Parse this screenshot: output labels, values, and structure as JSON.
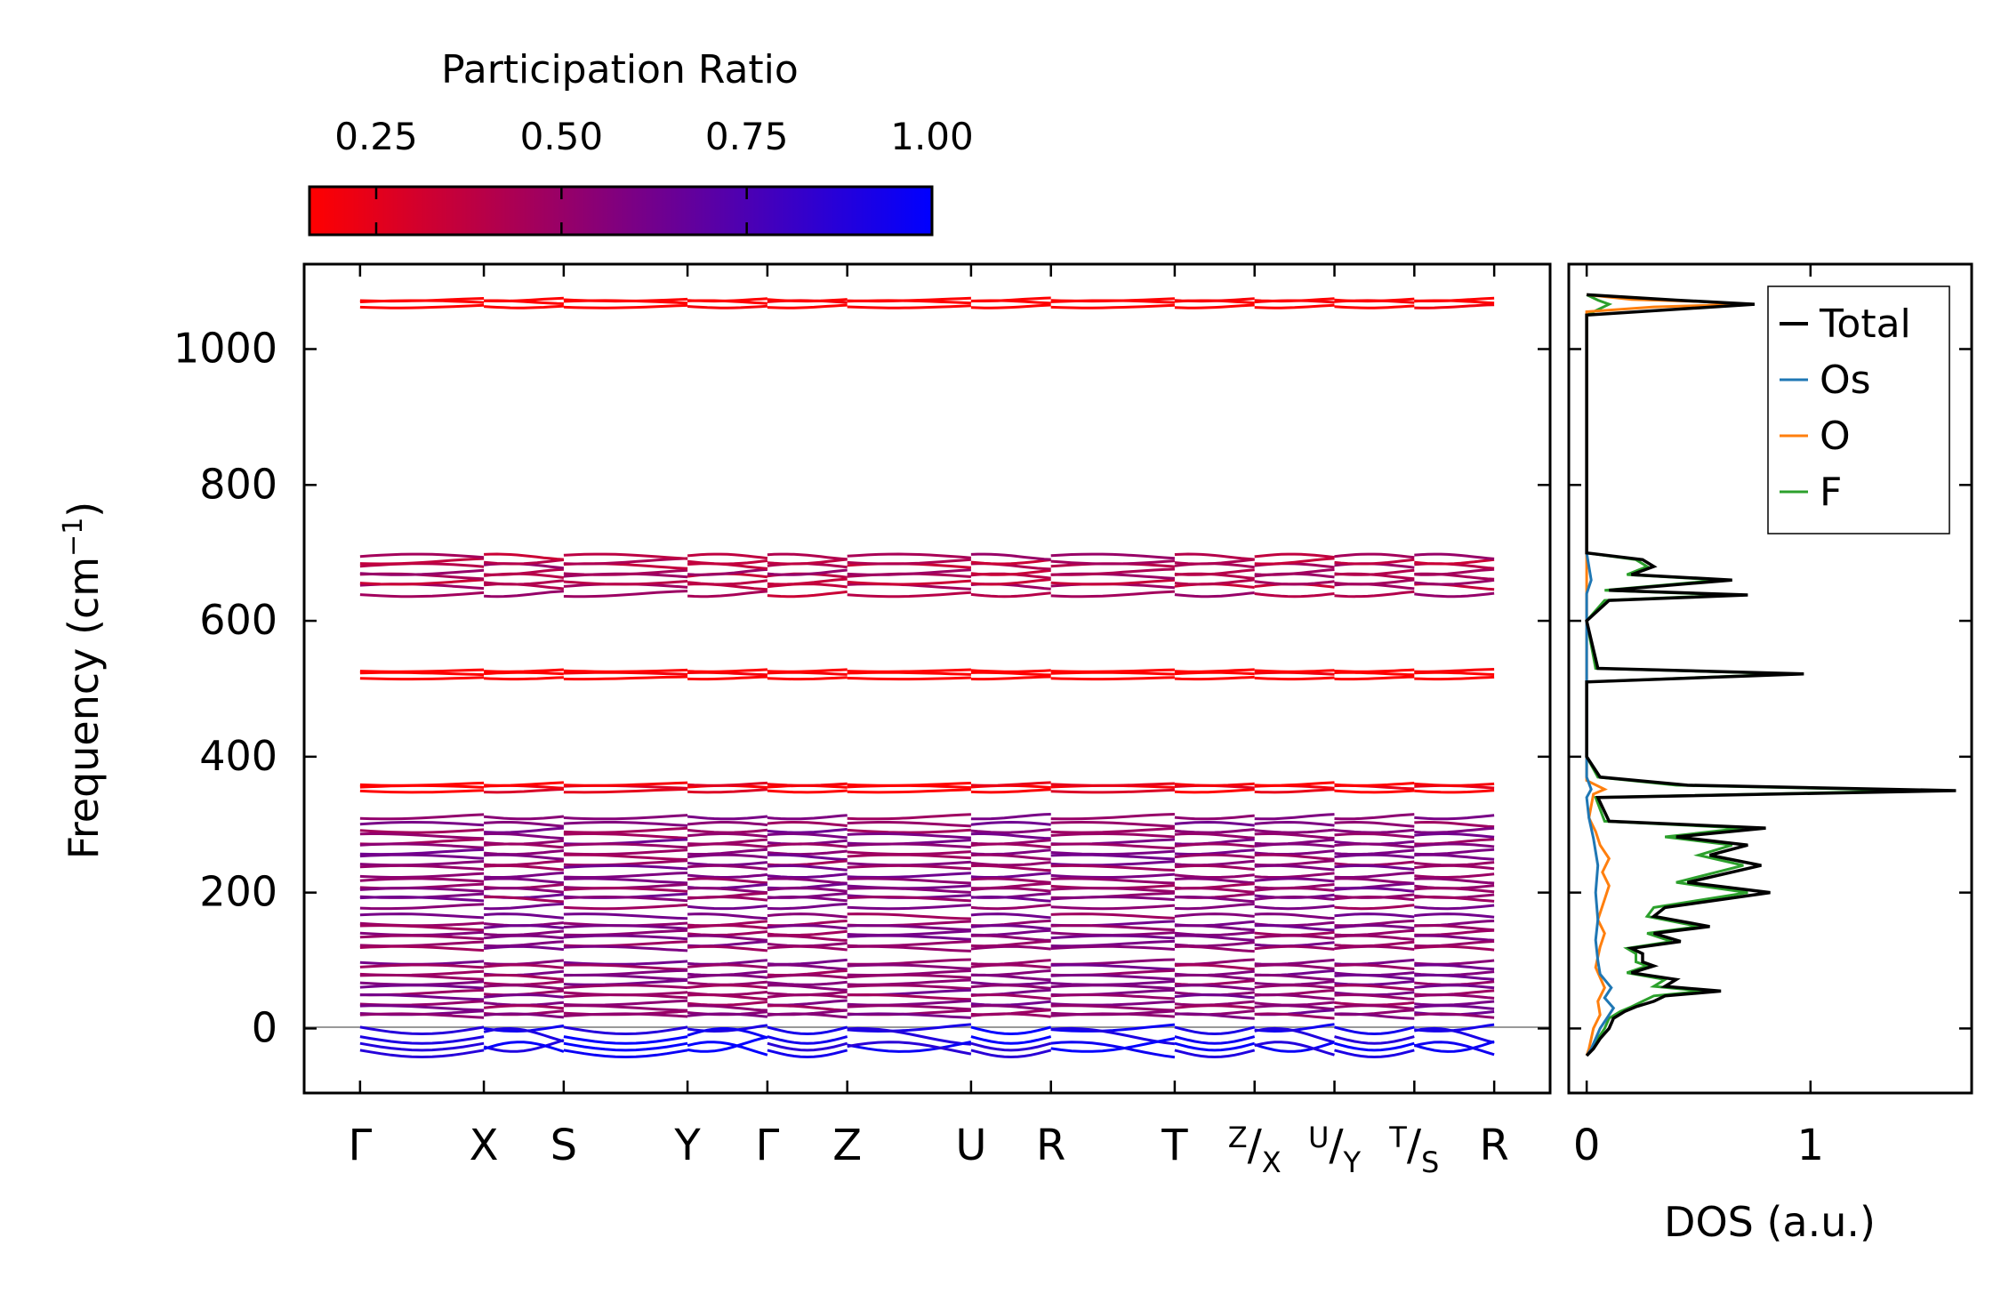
{
  "chart_data": [
    {
      "type": "line",
      "name": "phonon-band-structure",
      "ylabel": "Frequency (cm",
      "ylabel_sup": "−1",
      "ylabel_tail": ")",
      "ylim": [
        -95,
        1125
      ],
      "yticks": [
        0,
        200,
        400,
        600,
        800,
        1000
      ],
      "xticks": [
        {
          "pos": 0,
          "base": "Γ"
        },
        {
          "pos": 1.55,
          "base": "X"
        },
        {
          "pos": 2.55,
          "base": "S"
        },
        {
          "pos": 4.1,
          "base": "Y"
        },
        {
          "pos": 5.1,
          "base": "Γ"
        },
        {
          "pos": 6.1,
          "base": "Z"
        },
        {
          "pos": 7.65,
          "base": "U"
        },
        {
          "pos": 8.65,
          "base": "R"
        },
        {
          "pos": 10.2,
          "base": "T"
        },
        {
          "pos": 11.2,
          "sup": "Z",
          "slash": "/",
          "sub": "X"
        },
        {
          "pos": 12.2,
          "sup": "U",
          "slash": "/",
          "sub": "Y"
        },
        {
          "pos": 13.2,
          "sup": "T",
          "slash": "/",
          "sub": "S"
        },
        {
          "pos": 14.2,
          "base": "R"
        }
      ],
      "xlim": [
        -0.7,
        14.9
      ],
      "band_groups": [
        {
          "freqs": [
            1063,
            1069,
            1073
          ],
          "pr": 0.12
        },
        {
          "freqs": [
            640,
            650,
            658,
            665,
            672,
            680,
            688,
            694
          ],
          "pr": 0.42
        },
        {
          "freqs": [
            516,
            522,
            527
          ],
          "pr": 0.12
        },
        {
          "freqs": [
            350,
            355,
            360
          ],
          "pr": 0.2
        },
        {
          "freqs": [
            312,
            300,
            292,
            283,
            275,
            268,
            260,
            252,
            244,
            236,
            226,
            217,
            210,
            203,
            196,
            190,
            180,
            165,
            155,
            148,
            141,
            133,
            125,
            117,
            98,
            90,
            82,
            75,
            68,
            60,
            53,
            46,
            38,
            30,
            24,
            18
          ],
          "pr": 0.55
        },
        {
          "freqs": [
            2,
            -12,
            -22,
            -32
          ],
          "pr": 0.95
        }
      ]
    },
    {
      "type": "line",
      "name": "density-of-states",
      "xlabel": "DOS (a.u.)",
      "xlim": [
        -0.08,
        1.72
      ],
      "ylim": [
        -95,
        1125
      ],
      "xticks": [
        0,
        1
      ],
      "legend_position": "top-right",
      "series": [
        {
          "name": "Total",
          "color": "#000000",
          "points": [
            [
              0,
              -40
            ],
            [
              0.03,
              -30
            ],
            [
              0.06,
              -15
            ],
            [
              0.1,
              0
            ],
            [
              0.12,
              15
            ],
            [
              0.17,
              25
            ],
            [
              0.22,
              32
            ],
            [
              0.3,
              40
            ],
            [
              0.35,
              48
            ],
            [
              0.6,
              55
            ],
            [
              0.35,
              62
            ],
            [
              0.4,
              72
            ],
            [
              0.2,
              82
            ],
            [
              0.3,
              92
            ],
            [
              0.25,
              98
            ],
            [
              0.25,
              110
            ],
            [
              0.2,
              118
            ],
            [
              0.42,
              128
            ],
            [
              0.3,
              140
            ],
            [
              0.55,
              150
            ],
            [
              0.3,
              165
            ],
            [
              0.35,
              178
            ],
            [
              0.82,
              200
            ],
            [
              0.45,
              215
            ],
            [
              0.78,
              240
            ],
            [
              0.55,
              255
            ],
            [
              0.72,
              270
            ],
            [
              0.4,
              282
            ],
            [
              0.8,
              295
            ],
            [
              0.1,
              305
            ],
            [
              0.05,
              340
            ],
            [
              1.65,
              350
            ],
            [
              0.45,
              358
            ],
            [
              0.06,
              370
            ],
            [
              0,
              400
            ],
            [
              0,
              510
            ],
            [
              0.97,
              522
            ],
            [
              0.05,
              530
            ],
            [
              0,
              600
            ],
            [
              0.1,
              630
            ],
            [
              0.72,
              638
            ],
            [
              0.1,
              645
            ],
            [
              0.65,
              660
            ],
            [
              0.2,
              668
            ],
            [
              0.3,
              680
            ],
            [
              0.25,
              690
            ],
            [
              0,
              700
            ],
            [
              0,
              1050
            ],
            [
              0.75,
              1066
            ],
            [
              0.4,
              1072
            ],
            [
              0,
              1080
            ]
          ]
        },
        {
          "name": "Os",
          "color": "#1f77b4",
          "points": [
            [
              0,
              -40
            ],
            [
              0.02,
              -30
            ],
            [
              0.04,
              -15
            ],
            [
              0.06,
              0
            ],
            [
              0.09,
              15
            ],
            [
              0.12,
              30
            ],
            [
              0.08,
              45
            ],
            [
              0.11,
              60
            ],
            [
              0.06,
              80
            ],
            [
              0.05,
              100
            ],
            [
              0.04,
              130
            ],
            [
              0.05,
              160
            ],
            [
              0.04,
              200
            ],
            [
              0.05,
              240
            ],
            [
              0.03,
              280
            ],
            [
              0.01,
              310
            ],
            [
              0,
              340
            ],
            [
              0.02,
              352
            ],
            [
              0,
              370
            ],
            [
              0,
              640
            ],
            [
              0.02,
              660
            ],
            [
              0,
              700
            ]
          ]
        },
        {
          "name": "O",
          "color": "#ff7f0e",
          "points": [
            [
              0,
              -40
            ],
            [
              0.01,
              -30
            ],
            [
              0.02,
              -15
            ],
            [
              0.03,
              0
            ],
            [
              0.06,
              20
            ],
            [
              0.05,
              40
            ],
            [
              0.08,
              60
            ],
            [
              0.04,
              90
            ],
            [
              0.06,
              120
            ],
            [
              0.08,
              140
            ],
            [
              0.05,
              160
            ],
            [
              0.08,
              190
            ],
            [
              0.1,
              210
            ],
            [
              0.07,
              230
            ],
            [
              0.1,
              250
            ],
            [
              0.06,
              270
            ],
            [
              0.04,
              290
            ],
            [
              0.01,
              310
            ],
            [
              0.03,
              345
            ],
            [
              0.08,
              352
            ],
            [
              0,
              365
            ],
            [
              0,
              1055
            ],
            [
              0.3,
              1062
            ],
            [
              0.72,
              1066
            ],
            [
              0.5,
              1070
            ],
            [
              0.2,
              1073
            ],
            [
              0,
              1080
            ]
          ]
        },
        {
          "name": "F",
          "color": "#2ca02c",
          "points": [
            [
              0,
              -40
            ],
            [
              0.02,
              -30
            ],
            [
              0.05,
              -15
            ],
            [
              0.08,
              0
            ],
            [
              0.1,
              15
            ],
            [
              0.15,
              25
            ],
            [
              0.2,
              32
            ],
            [
              0.25,
              40
            ],
            [
              0.3,
              48
            ],
            [
              0.52,
              55
            ],
            [
              0.3,
              62
            ],
            [
              0.35,
              72
            ],
            [
              0.18,
              82
            ],
            [
              0.27,
              92
            ],
            [
              0.22,
              98
            ],
            [
              0.22,
              110
            ],
            [
              0.18,
              118
            ],
            [
              0.38,
              128
            ],
            [
              0.27,
              140
            ],
            [
              0.5,
              150
            ],
            [
              0.27,
              165
            ],
            [
              0.3,
              178
            ],
            [
              0.72,
              200
            ],
            [
              0.4,
              215
            ],
            [
              0.7,
              240
            ],
            [
              0.5,
              255
            ],
            [
              0.65,
              270
            ],
            [
              0.35,
              282
            ],
            [
              0.7,
              295
            ],
            [
              0.08,
              305
            ],
            [
              0.04,
              340
            ],
            [
              1.5,
              350
            ],
            [
              0.4,
              358
            ],
            [
              0.05,
              370
            ],
            [
              0,
              400
            ],
            [
              0,
              510
            ],
            [
              0.92,
              522
            ],
            [
              0.04,
              530
            ],
            [
              0,
              600
            ],
            [
              0.08,
              630
            ],
            [
              0.65,
              638
            ],
            [
              0.08,
              645
            ],
            [
              0.6,
              660
            ],
            [
              0.18,
              668
            ],
            [
              0.27,
              680
            ],
            [
              0.22,
              690
            ],
            [
              0,
              700
            ],
            [
              0,
              1050
            ],
            [
              0.1,
              1066
            ],
            [
              0.05,
              1072
            ],
            [
              0,
              1080
            ]
          ]
        }
      ]
    },
    {
      "type": "heatmap",
      "name": "colorbar",
      "title": "Participation Ratio",
      "range": [
        0.16,
        1.0
      ],
      "tick_values": [
        0.25,
        0.5,
        0.75,
        1.0
      ],
      "tick_labels": [
        "0.25",
        "0.50",
        "0.75",
        "1.00"
      ],
      "color_low": "#ff0000",
      "color_high": "#0000ff"
    }
  ]
}
